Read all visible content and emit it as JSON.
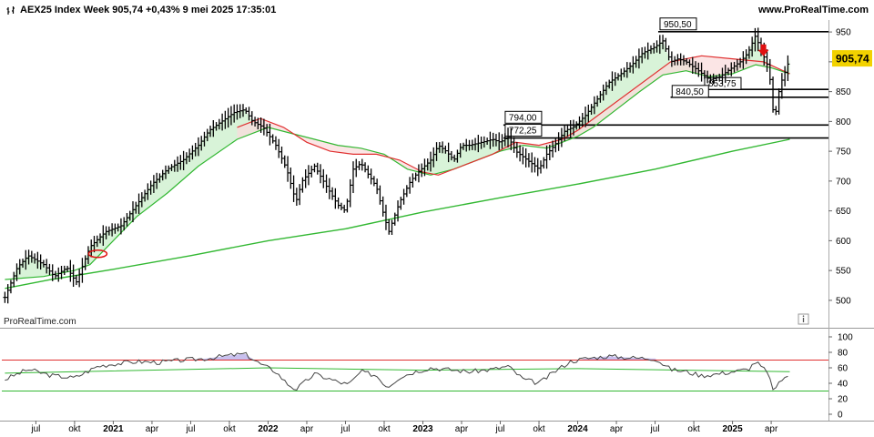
{
  "header": {
    "title": "AEX25 Index Week 905,74 +0,43% 9 mei 2025 17:35:01",
    "site": "www.ProRealTime.com"
  },
  "watermark": "ProRealTime.com",
  "info_icon": "info-icon",
  "colors": {
    "price_bar": "#000000",
    "ma_short": "#e03030",
    "ma_mid": "#33b833",
    "ma_long": "#33b833",
    "fill_green": "#d8f3d8",
    "fill_red": "#f9dcdc",
    "rsi_line": "#444444",
    "rsi_upper": "#e03030",
    "rsi_lower": "#33b833",
    "rsi_mid": "#33b833",
    "rsi_fill_high": "#c8c0ee",
    "price_tag": "#f2d200",
    "arrow": "#e01010",
    "circle": "#e01010"
  },
  "chart_data": [
    {
      "type": "line",
      "title": "AEX25 Index Week",
      "last_value_label": "905,74",
      "ylim": [
        480,
        970
      ],
      "y_ticks": [
        "500",
        "550",
        "600",
        "650",
        "700",
        "750",
        "800",
        "850",
        "900",
        "950"
      ],
      "x_ticks": [
        {
          "label": "jul",
          "t": 2020.5,
          "year": false
        },
        {
          "label": "okt",
          "t": 2020.75,
          "year": false
        },
        {
          "label": "2021",
          "t": 2021.0,
          "year": true
        },
        {
          "label": "apr",
          "t": 2021.25,
          "year": false
        },
        {
          "label": "jul",
          "t": 2021.5,
          "year": false
        },
        {
          "label": "okt",
          "t": 2021.75,
          "year": false
        },
        {
          "label": "2022",
          "t": 2022.0,
          "year": true
        },
        {
          "label": "apr",
          "t": 2022.25,
          "year": false
        },
        {
          "label": "jul",
          "t": 2022.5,
          "year": false
        },
        {
          "label": "okt",
          "t": 2022.75,
          "year": false
        },
        {
          "label": "2023",
          "t": 2023.0,
          "year": true
        },
        {
          "label": "apr",
          "t": 2023.25,
          "year": false
        },
        {
          "label": "jul",
          "t": 2023.5,
          "year": false
        },
        {
          "label": "okt",
          "t": 2023.75,
          "year": false
        },
        {
          "label": "2024",
          "t": 2024.0,
          "year": true
        },
        {
          "label": "apr",
          "t": 2024.25,
          "year": false
        },
        {
          "label": "jul",
          "t": 2024.5,
          "year": false
        },
        {
          "label": "okt",
          "t": 2024.75,
          "year": false
        },
        {
          "label": "2025",
          "t": 2025.0,
          "year": true
        },
        {
          "label": "apr",
          "t": 2025.25,
          "year": false
        }
      ],
      "series": [
        {
          "key": "price",
          "points": [
            [
              2020.3,
              505
            ],
            [
              2020.38,
              555
            ],
            [
              2020.45,
              575
            ],
            [
              2020.55,
              560
            ],
            [
              2020.62,
              540
            ],
            [
              2020.7,
              555
            ],
            [
              2020.76,
              530
            ],
            [
              2020.85,
              590
            ],
            [
              2020.95,
              615
            ],
            [
              2021.05,
              625
            ],
            [
              2021.15,
              660
            ],
            [
              2021.25,
              695
            ],
            [
              2021.35,
              720
            ],
            [
              2021.45,
              735
            ],
            [
              2021.55,
              760
            ],
            [
              2021.62,
              785
            ],
            [
              2021.7,
              800
            ],
            [
              2021.78,
              815
            ],
            [
              2021.85,
              820
            ],
            [
              2021.9,
              800
            ],
            [
              2021.97,
              790
            ],
            [
              2022.05,
              760
            ],
            [
              2022.12,
              720
            ],
            [
              2022.18,
              665
            ],
            [
              2022.22,
              700
            ],
            [
              2022.3,
              725
            ],
            [
              2022.38,
              690
            ],
            [
              2022.45,
              660
            ],
            [
              2022.5,
              650
            ],
            [
              2022.55,
              720
            ],
            [
              2022.6,
              730
            ],
            [
              2022.65,
              710
            ],
            [
              2022.7,
              690
            ],
            [
              2022.75,
              640
            ],
            [
              2022.78,
              615
            ],
            [
              2022.85,
              665
            ],
            [
              2022.92,
              700
            ],
            [
              2022.97,
              715
            ],
            [
              2023.05,
              735
            ],
            [
              2023.1,
              760
            ],
            [
              2023.15,
              750
            ],
            [
              2023.2,
              735
            ],
            [
              2023.25,
              760
            ],
            [
              2023.3,
              760
            ],
            [
              2023.38,
              765
            ],
            [
              2023.45,
              770
            ],
            [
              2023.5,
              765
            ],
            [
              2023.55,
              775
            ],
            [
              2023.6,
              750
            ],
            [
              2023.65,
              740
            ],
            [
              2023.7,
              730
            ],
            [
              2023.75,
              720
            ],
            [
              2023.8,
              745
            ],
            [
              2023.85,
              760
            ],
            [
              2023.92,
              785
            ],
            [
              2023.97,
              790
            ],
            [
              2024.05,
              810
            ],
            [
              2024.12,
              835
            ],
            [
              2024.2,
              865
            ],
            [
              2024.28,
              880
            ],
            [
              2024.35,
              895
            ],
            [
              2024.42,
              915
            ],
            [
              2024.5,
              925
            ],
            [
              2024.55,
              935
            ],
            [
              2024.6,
              900
            ],
            [
              2024.65,
              905
            ],
            [
              2024.7,
              900
            ],
            [
              2024.78,
              885
            ],
            [
              2024.85,
              870
            ],
            [
              2024.92,
              875
            ],
            [
              2024.97,
              885
            ],
            [
              2025.05,
              900
            ],
            [
              2025.1,
              915
            ],
            [
              2025.15,
              945
            ],
            [
              2025.18,
              920
            ],
            [
              2025.22,
              900
            ],
            [
              2025.25,
              860
            ],
            [
              2025.27,
              790
            ],
            [
              2025.29,
              840
            ],
            [
              2025.32,
              870
            ],
            [
              2025.35,
              890
            ],
            [
              2025.37,
              905.74
            ]
          ]
        },
        {
          "key": "ma_short",
          "points": [
            [
              2021.8,
              790
            ],
            [
              2021.95,
              805
            ],
            [
              2022.1,
              790
            ],
            [
              2022.25,
              765
            ],
            [
              2022.4,
              750
            ],
            [
              2022.55,
              745
            ],
            [
              2022.7,
              745
            ],
            [
              2022.85,
              735
            ],
            [
              2023.0,
              715
            ],
            [
              2023.1,
              710
            ],
            [
              2023.25,
              725
            ],
            [
              2023.45,
              745
            ],
            [
              2023.6,
              765
            ],
            [
              2023.75,
              760
            ],
            [
              2023.9,
              770
            ],
            [
              2024.0,
              785
            ],
            [
              2024.6,
              900
            ],
            [
              2024.8,
              910
            ],
            [
              2025.0,
              905
            ],
            [
              2025.2,
              900
            ],
            [
              2025.37,
              880
            ]
          ]
        },
        {
          "key": "ma_mid",
          "points": [
            [
              2020.3,
              535
            ],
            [
              2020.55,
              540
            ],
            [
              2020.75,
              550
            ],
            [
              2020.85,
              560
            ],
            [
              2021.0,
              600
            ],
            [
              2021.15,
              640
            ],
            [
              2021.35,
              680
            ],
            [
              2021.55,
              725
            ],
            [
              2021.8,
              770
            ],
            [
              2022.0,
              790
            ],
            [
              2022.15,
              780
            ],
            [
              2022.3,
              770
            ],
            [
              2022.45,
              760
            ],
            [
              2022.6,
              755
            ],
            [
              2022.75,
              745
            ],
            [
              2022.9,
              720
            ],
            [
              2023.05,
              710
            ],
            [
              2023.2,
              720
            ],
            [
              2023.35,
              735
            ],
            [
              2023.5,
              750
            ],
            [
              2023.65,
              760
            ],
            [
              2023.8,
              755
            ],
            [
              2023.9,
              765
            ],
            [
              2024.0,
              775
            ],
            [
              2024.1,
              790
            ],
            [
              2024.25,
              820
            ],
            [
              2024.4,
              850
            ],
            [
              2024.55,
              878
            ],
            [
              2024.7,
              885
            ],
            [
              2024.85,
              875
            ],
            [
              2025.0,
              880
            ],
            [
              2025.15,
              895
            ],
            [
              2025.25,
              890
            ],
            [
              2025.37,
              880
            ]
          ]
        },
        {
          "key": "ma_long",
          "points": [
            [
              2020.3,
              520
            ],
            [
              2020.6,
              535
            ],
            [
              2021.0,
              552
            ],
            [
              2021.5,
              575
            ],
            [
              2022.0,
              600
            ],
            [
              2022.5,
              620
            ],
            [
              2023.0,
              648
            ],
            [
              2023.5,
              672
            ],
            [
              2024.0,
              695
            ],
            [
              2024.5,
              720
            ],
            [
              2025.0,
              750
            ],
            [
              2025.37,
              770
            ]
          ]
        }
      ],
      "levels": [
        {
          "label": "950,50",
          "value": 950.5
        },
        {
          "label": "853,75",
          "value": 853.75
        },
        {
          "label": "840,50",
          "value": 840.5
        },
        {
          "label": "794,00",
          "value": 794.0
        },
        {
          "label": "772,25",
          "value": 772.25
        }
      ],
      "arrow_at": [
        2025.2,
        917
      ],
      "circle_at": [
        2020.9,
        578
      ]
    },
    {
      "type": "line",
      "title": "",
      "ylim": [
        0,
        100
      ],
      "y_ticks": [
        "0",
        "20",
        "40",
        "60",
        "80",
        "100"
      ],
      "overbought": 70,
      "oversold": 30,
      "midline": [
        [
          2020.3,
          53
        ],
        [
          2022.0,
          60
        ],
        [
          2023.0,
          57
        ],
        [
          2024.0,
          59
        ],
        [
          2025.37,
          55
        ]
      ],
      "series": [
        {
          "key": "rsi",
          "points": [
            [
              2020.3,
              45
            ],
            [
              2020.45,
              58
            ],
            [
              2020.6,
              50
            ],
            [
              2020.75,
              47
            ],
            [
              2020.9,
              62
            ],
            [
              2021.0,
              65
            ],
            [
              2021.15,
              68
            ],
            [
              2021.3,
              67
            ],
            [
              2021.45,
              70
            ],
            [
              2021.6,
              72
            ],
            [
              2021.75,
              76
            ],
            [
              2021.85,
              78
            ],
            [
              2021.95,
              65
            ],
            [
              2022.05,
              55
            ],
            [
              2022.12,
              40
            ],
            [
              2022.18,
              32
            ],
            [
              2022.3,
              52
            ],
            [
              2022.45,
              42
            ],
            [
              2022.52,
              38
            ],
            [
              2022.6,
              55
            ],
            [
              2022.7,
              50
            ],
            [
              2022.77,
              35
            ],
            [
              2022.85,
              48
            ],
            [
              2022.95,
              55
            ],
            [
              2023.05,
              60
            ],
            [
              2023.15,
              58
            ],
            [
              2023.3,
              55
            ],
            [
              2023.45,
              58
            ],
            [
              2023.55,
              62
            ],
            [
              2023.65,
              45
            ],
            [
              2023.75,
              40
            ],
            [
              2023.85,
              55
            ],
            [
              2023.95,
              68
            ],
            [
              2024.05,
              72
            ],
            [
              2024.2,
              75
            ],
            [
              2024.35,
              73
            ],
            [
              2024.5,
              72
            ],
            [
              2024.6,
              58
            ],
            [
              2024.7,
              55
            ],
            [
              2024.8,
              50
            ],
            [
              2024.9,
              52
            ],
            [
              2025.0,
              55
            ],
            [
              2025.1,
              58
            ],
            [
              2025.15,
              68
            ],
            [
              2025.22,
              55
            ],
            [
              2025.27,
              30
            ],
            [
              2025.32,
              45
            ],
            [
              2025.37,
              52
            ]
          ]
        }
      ]
    }
  ]
}
